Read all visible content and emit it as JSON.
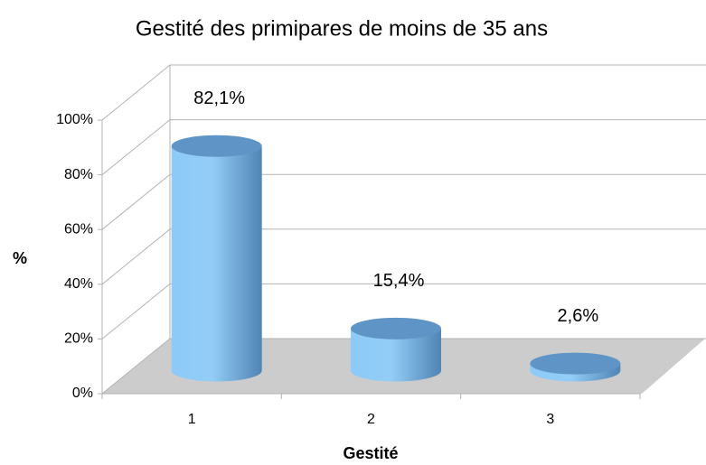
{
  "chart_data": {
    "type": "bar3d",
    "title": "Gestité des primipares de moins de 35 ans",
    "x_label": "Gestité",
    "y_label": "%",
    "categories": [
      "1",
      "2",
      "3"
    ],
    "values": [
      82.1,
      15.4,
      2.6
    ],
    "value_labels": [
      "82,1%",
      "15,4%",
      "2,6%"
    ],
    "color": "#7fbef0",
    "ylim": [
      0,
      100
    ],
    "yticks": [
      {
        "value": 0,
        "label": "0%"
      },
      {
        "value": 20,
        "label": "20%"
      },
      {
        "value": 40,
        "label": "40%"
      },
      {
        "value": 60,
        "label": "60%"
      },
      {
        "value": 80,
        "label": "80%"
      },
      {
        "value": 100,
        "label": "100%"
      }
    ],
    "grid": true
  }
}
